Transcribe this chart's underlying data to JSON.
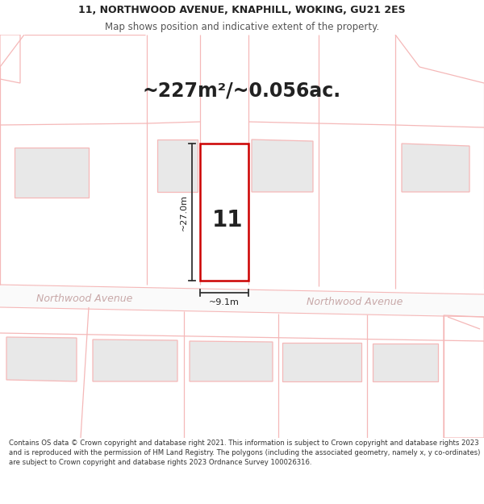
{
  "title_line1": "11, NORTHWOOD AVENUE, KNAPHILL, WOKING, GU21 2ES",
  "title_line2": "Map shows position and indicative extent of the property.",
  "area_text": "~227m²/~0.056ac.",
  "dim_height": "~27.0m",
  "dim_width": "~9.1m",
  "property_number": "11",
  "street_name": "Northwood Avenue",
  "footer_text": "Contains OS data © Crown copyright and database right 2021. This information is subject to Crown copyright and database rights 2023 and is reproduced with the permission of HM Land Registry. The polygons (including the associated geometry, namely x, y co-ordinates) are subject to Crown copyright and database rights 2023 Ordnance Survey 100026316.",
  "bg_color": "#ffffff",
  "map_bg_color": "#ffffff",
  "plot_color": "#cc0000",
  "plot_line_lw": 1.8,
  "road_line_color": "#f5b8b8",
  "boundary_color": "#f5b8b8",
  "building_fill": "#e8e8e8",
  "building_edge": "#f5b8b8",
  "text_color": "#222222",
  "street_text_color": "#c8a8a8",
  "dim_line_color": "#333333",
  "footer_text_color": "#333333",
  "title_fontsize": 9.0,
  "subtitle_fontsize": 8.5,
  "area_fontsize": 17,
  "number_fontsize": 20,
  "street_fontsize": 9,
  "dim_fontsize": 8,
  "footer_fontsize": 6.1
}
